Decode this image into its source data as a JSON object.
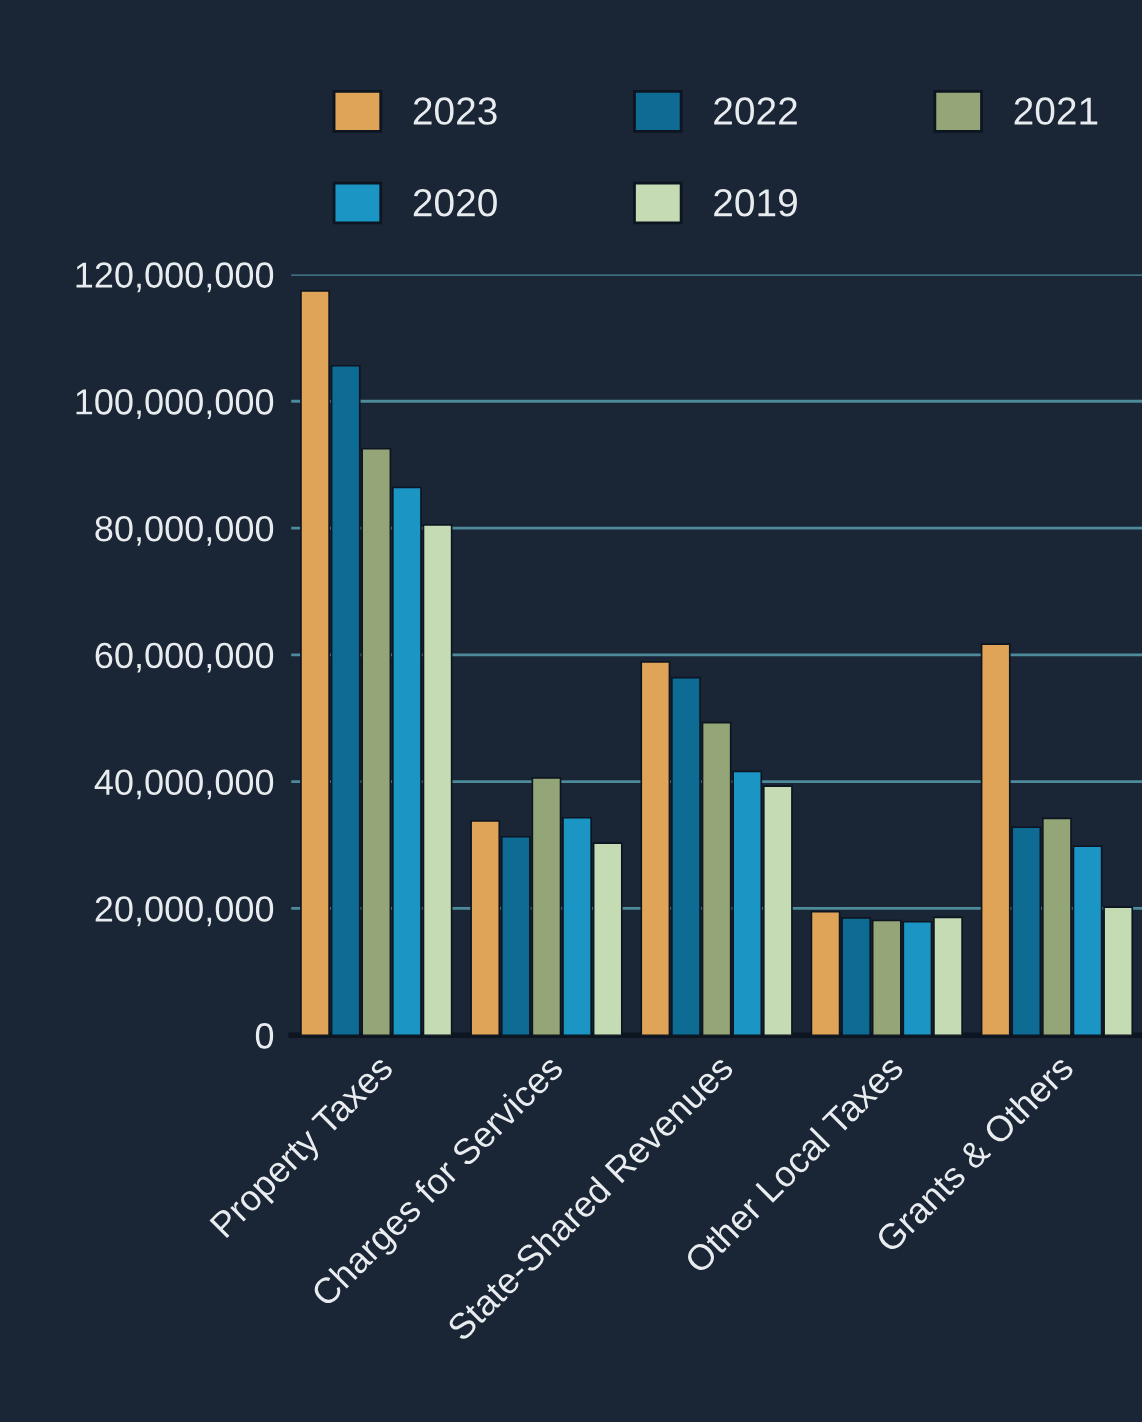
{
  "chart_data": {
    "type": "bar",
    "categories": [
      "Property Taxes",
      "Charges for Services",
      "State-Shared Revenues",
      "Other Local Taxes",
      "Grants & Others"
    ],
    "series": [
      {
        "name": "2023",
        "color": "#e0a458",
        "values": [
          117400000,
          33800000,
          58900000,
          19500000,
          61700000
        ]
      },
      {
        "name": "2022",
        "color": "#0e6b94",
        "values": [
          105600000,
          31300000,
          56400000,
          18500000,
          32800000
        ]
      },
      {
        "name": "2021",
        "color": "#94a677",
        "values": [
          92500000,
          40600000,
          49300000,
          18100000,
          34200000
        ]
      },
      {
        "name": "2020",
        "color": "#1b95c4",
        "values": [
          86400000,
          34300000,
          41600000,
          17900000,
          29800000
        ]
      },
      {
        "name": "2019",
        "color": "#c5dbb3",
        "values": [
          80500000,
          30300000,
          39300000,
          18600000,
          20200000
        ]
      }
    ],
    "ylim": [
      0,
      120000000
    ],
    "yticks": [
      {
        "value": 0,
        "label": "0"
      },
      {
        "value": 20000000,
        "label": "20,000,000"
      },
      {
        "value": 40000000,
        "label": "40,000,000"
      },
      {
        "value": 60000000,
        "label": "60,000,000"
      },
      {
        "value": 80000000,
        "label": "80,000,000"
      },
      {
        "value": 100000000,
        "label": "100,000,000"
      },
      {
        "value": 120000000,
        "label": "120,000,000"
      }
    ],
    "grid": "y",
    "legend": "top"
  }
}
